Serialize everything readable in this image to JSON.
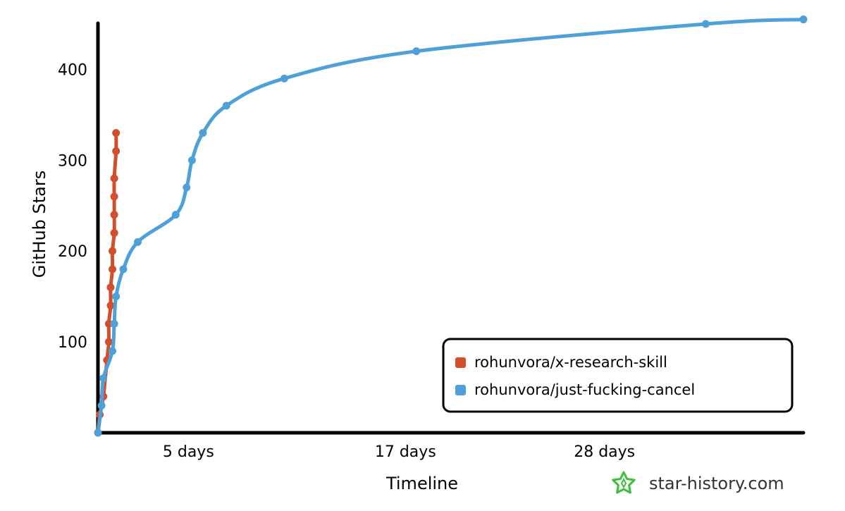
{
  "chart_data": {
    "type": "line",
    "title": "",
    "xlabel": "Timeline",
    "ylabel": "GitHub Stars",
    "x_unit": "days",
    "x_tick_values": [
      5,
      17,
      28
    ],
    "x_tick_labels": [
      "5 days",
      "17 days",
      "28 days"
    ],
    "y_tick_values": [
      100,
      200,
      300,
      400
    ],
    "y_tick_labels": [
      "100",
      "200",
      "300",
      "400"
    ],
    "xlim": [
      0,
      39
    ],
    "ylim": [
      0,
      450
    ],
    "grid": false,
    "legend_position": "bottom-right",
    "series": [
      {
        "name": "rohunvora/x-research-skill",
        "color": "#d24f2e",
        "x": [
          0,
          0.1,
          0.3,
          0.5,
          0.6,
          0.6,
          0.7,
          0.7,
          0.8,
          0.8,
          0.9,
          0.9,
          0.9,
          0.9,
          1.0,
          1.0
        ],
        "y": [
          0,
          20,
          40,
          80,
          100,
          120,
          140,
          160,
          180,
          200,
          220,
          240,
          260,
          280,
          310,
          330
        ]
      },
      {
        "name": "rohunvora/just-fucking-cancel",
        "color": "#4ea0d8",
        "x": [
          0,
          0.2,
          0.3,
          0.8,
          0.9,
          1.0,
          1.4,
          2.2,
          4.3,
          4.9,
          5.2,
          5.8,
          7.1,
          10.3,
          17.6,
          33.6,
          39.0
        ],
        "y": [
          0,
          30,
          60,
          90,
          120,
          150,
          180,
          210,
          240,
          270,
          300,
          330,
          360,
          390,
          420,
          450,
          455
        ]
      }
    ]
  },
  "watermark": {
    "text": "star-history.com",
    "icon": "star-icon",
    "icon_color": "#3cbf3c"
  }
}
